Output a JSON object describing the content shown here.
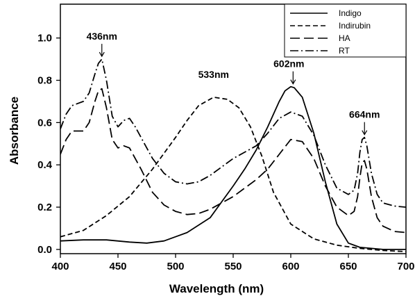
{
  "chart_data": {
    "type": "line",
    "xlabel": "Wavelength (nm)",
    "ylabel": "Absorbance",
    "xlim": [
      400,
      700
    ],
    "ylim": [
      -0.02,
      1.16
    ],
    "xticks": [
      400,
      450,
      500,
      550,
      600,
      650,
      700
    ],
    "yticks": [
      0.0,
      0.2,
      0.4,
      0.6,
      0.8,
      1.0
    ],
    "xtick_labels": [
      "400",
      "450",
      "500",
      "550",
      "600",
      "650",
      "700"
    ],
    "ytick_labels": [
      "0.0",
      "0.2",
      "0.4",
      "0.6",
      "0.8",
      "1.0"
    ],
    "legend_position": "top-right",
    "grid": false,
    "series": [
      {
        "name": "Indigo",
        "style": "solid",
        "x": [
          400,
          420,
          440,
          460,
          475,
          490,
          510,
          530,
          550,
          560,
          570,
          580,
          590,
          595,
          600,
          603,
          610,
          620,
          630,
          640,
          650,
          660,
          680,
          700
        ],
        "y": [
          0.04,
          0.045,
          0.045,
          0.035,
          0.03,
          0.04,
          0.08,
          0.15,
          0.3,
          0.38,
          0.47,
          0.58,
          0.7,
          0.75,
          0.77,
          0.765,
          0.72,
          0.55,
          0.32,
          0.12,
          0.03,
          0.01,
          0.0,
          0.0
        ]
      },
      {
        "name": "Indirubin",
        "style": "short-dash",
        "x": [
          400,
          420,
          440,
          460,
          480,
          500,
          510,
          520,
          533,
          545,
          555,
          565,
          575,
          585,
          600,
          620,
          640,
          660,
          680,
          700
        ],
        "y": [
          0.06,
          0.09,
          0.16,
          0.25,
          0.38,
          0.53,
          0.61,
          0.68,
          0.72,
          0.71,
          0.67,
          0.58,
          0.44,
          0.27,
          0.12,
          0.05,
          0.02,
          0.005,
          -0.005,
          -0.01
        ],
        "annotation": "533nm",
        "annotation_x": 533
      },
      {
        "name": "HA",
        "style": "long-dash",
        "x": [
          400,
          405,
          410,
          420,
          425,
          430,
          433,
          436,
          440,
          445,
          450,
          455,
          460,
          470,
          480,
          490,
          500,
          510,
          520,
          530,
          540,
          550,
          560,
          570,
          580,
          590,
          600,
          610,
          620,
          630,
          640,
          650,
          655,
          658,
          660,
          662,
          664,
          666,
          670,
          675,
          680,
          690,
          700
        ],
        "y": [
          0.45,
          0.52,
          0.56,
          0.56,
          0.6,
          0.7,
          0.75,
          0.76,
          0.67,
          0.52,
          0.48,
          0.49,
          0.48,
          0.38,
          0.27,
          0.21,
          0.18,
          0.165,
          0.17,
          0.19,
          0.22,
          0.25,
          0.29,
          0.33,
          0.38,
          0.45,
          0.52,
          0.51,
          0.43,
          0.3,
          0.2,
          0.16,
          0.18,
          0.25,
          0.34,
          0.41,
          0.42,
          0.38,
          0.25,
          0.15,
          0.11,
          0.085,
          0.08
        ]
      },
      {
        "name": "RT",
        "style": "dash-dot",
        "x": [
          400,
          405,
          410,
          420,
          425,
          430,
          433,
          436,
          440,
          445,
          450,
          455,
          460,
          465,
          470,
          480,
          490,
          500,
          510,
          520,
          530,
          540,
          550,
          560,
          570,
          580,
          590,
          600,
          610,
          620,
          630,
          640,
          650,
          655,
          658,
          660,
          662,
          664,
          666,
          670,
          675,
          680,
          690,
          700
        ],
        "y": [
          0.57,
          0.64,
          0.68,
          0.7,
          0.74,
          0.83,
          0.88,
          0.9,
          0.8,
          0.63,
          0.58,
          0.61,
          0.62,
          0.58,
          0.53,
          0.43,
          0.36,
          0.32,
          0.31,
          0.32,
          0.35,
          0.39,
          0.43,
          0.46,
          0.49,
          0.55,
          0.62,
          0.65,
          0.63,
          0.54,
          0.4,
          0.29,
          0.26,
          0.28,
          0.36,
          0.46,
          0.52,
          0.53,
          0.49,
          0.36,
          0.26,
          0.22,
          0.205,
          0.2
        ]
      }
    ],
    "annotations": [
      {
        "text": "436nm",
        "x": 436,
        "y": 0.9
      },
      {
        "text": "602nm",
        "x": 602,
        "y": 0.77
      },
      {
        "text": "664nm",
        "x": 664,
        "y": 0.53
      }
    ]
  }
}
